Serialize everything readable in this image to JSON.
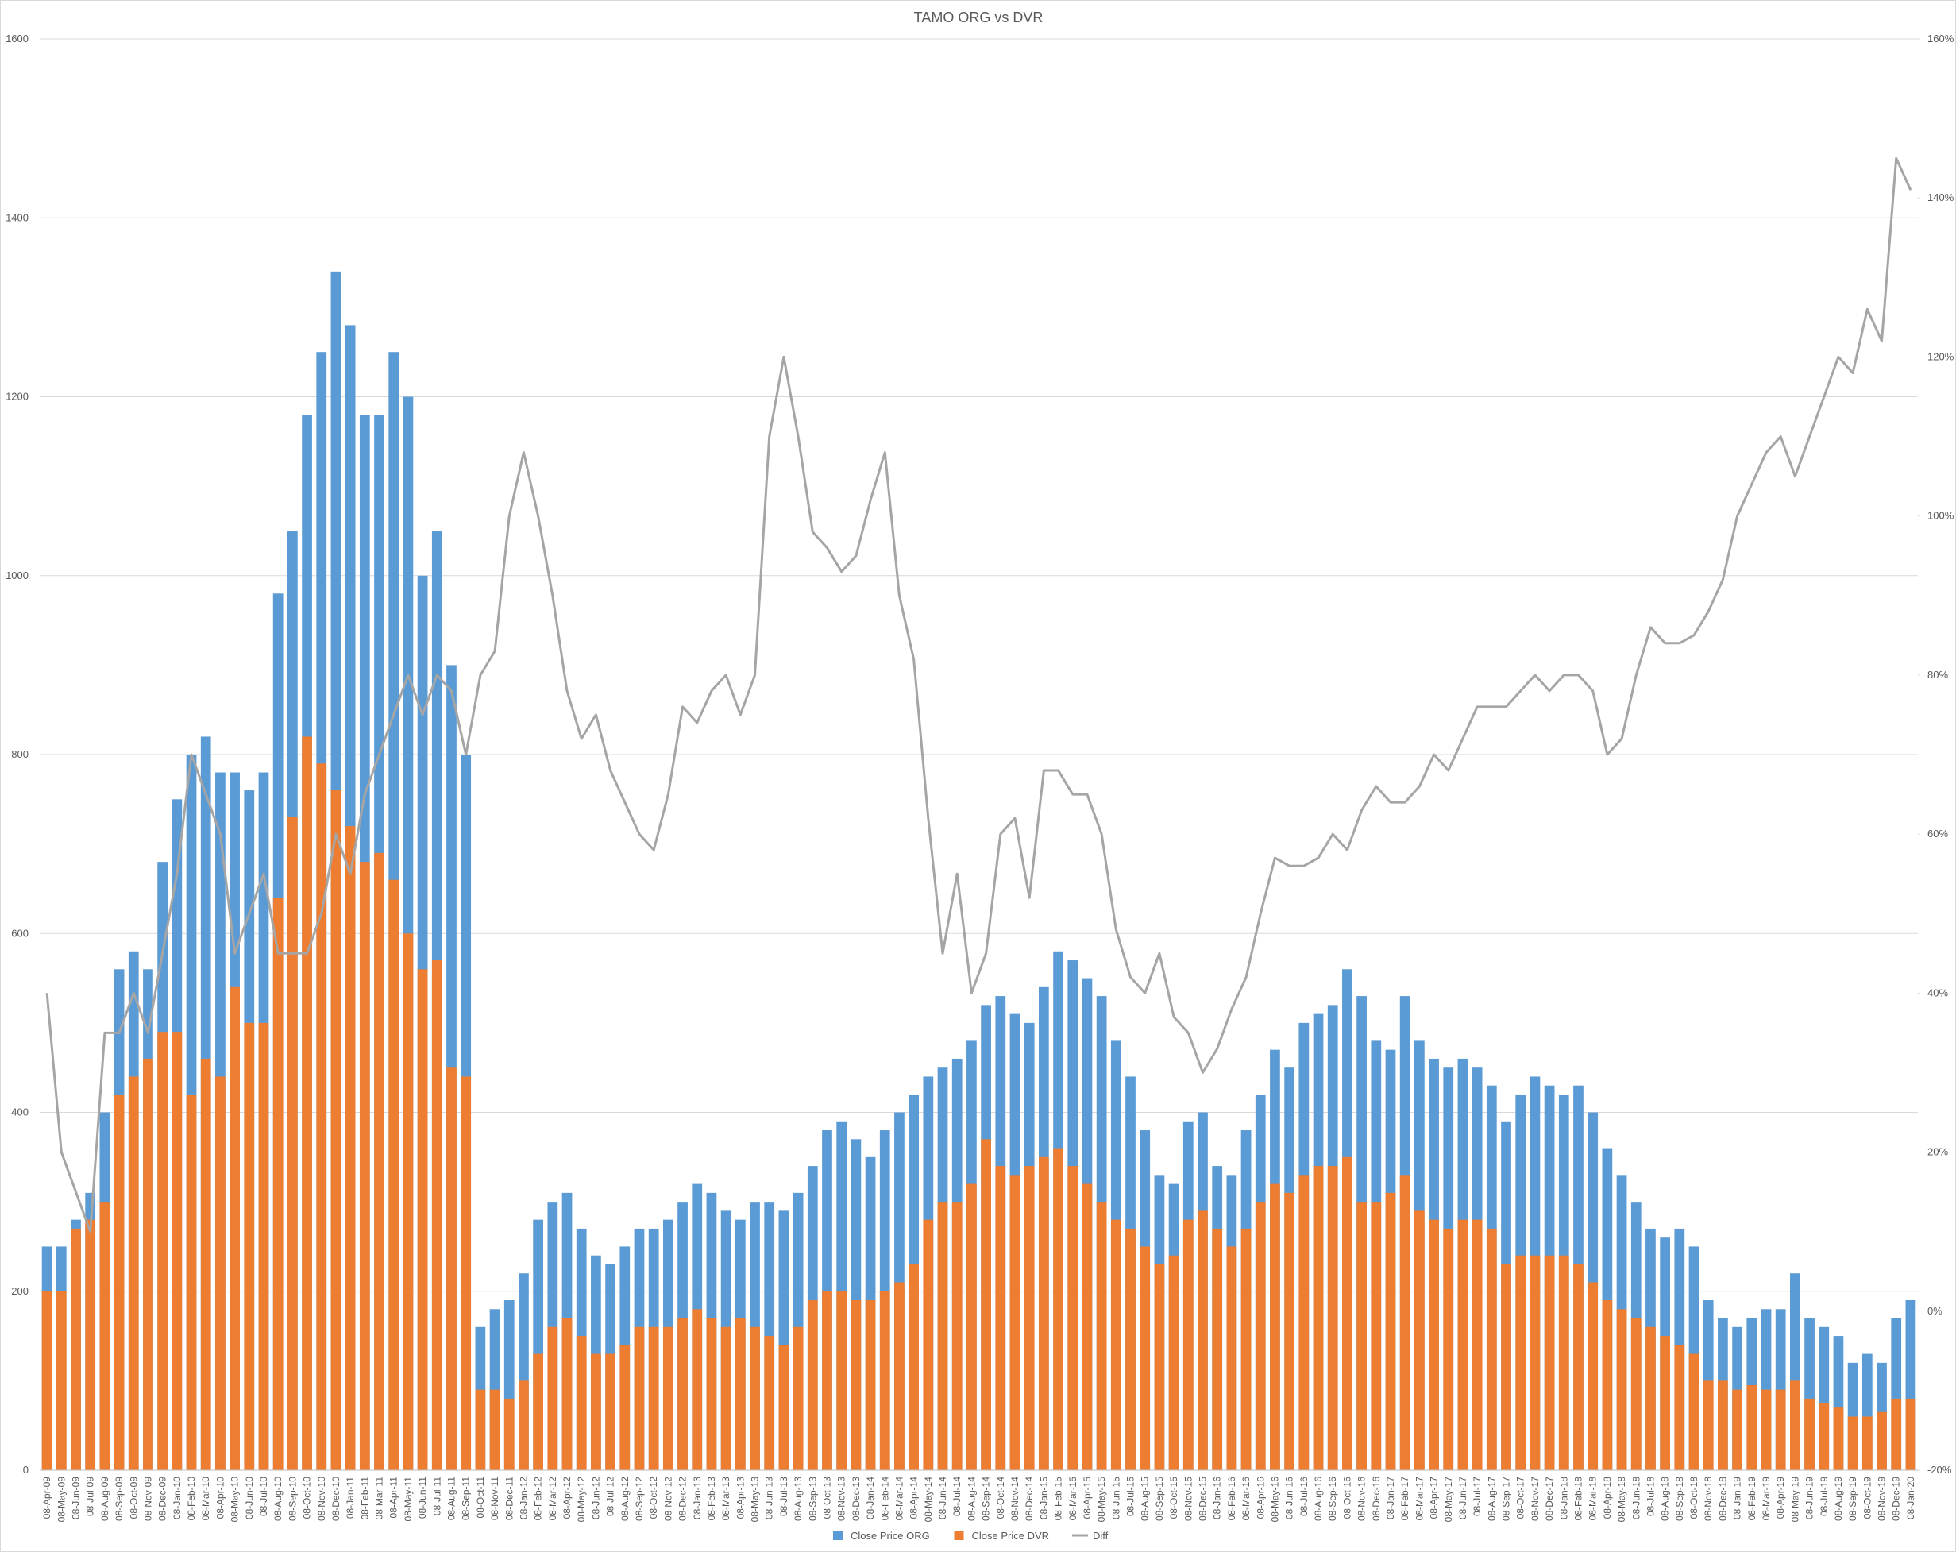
{
  "chart_data": {
    "type": "bar",
    "title": "TAMO ORG vs DVR",
    "categories": [
      "08-Apr-09",
      "08-May-09",
      "08-Jun-09",
      "08-Jul-09",
      "08-Aug-09",
      "08-Sep-09",
      "08-Oct-09",
      "08-Nov-09",
      "08-Dec-09",
      "08-Jan-10",
      "08-Feb-10",
      "08-Mar-10",
      "08-Apr-10",
      "08-May-10",
      "08-Jun-10",
      "08-Jul-10",
      "08-Aug-10",
      "08-Sep-10",
      "08-Oct-10",
      "08-Nov-10",
      "08-Dec-10",
      "08-Jan-11",
      "08-Feb-11",
      "08-Mar-11",
      "08-Apr-11",
      "08-May-11",
      "08-Jun-11",
      "08-Jul-11",
      "08-Aug-11",
      "08-Sep-11",
      "08-Oct-11",
      "08-Nov-11",
      "08-Dec-11",
      "08-Jan-12",
      "08-Feb-12",
      "08-Mar-12",
      "08-Apr-12",
      "08-May-12",
      "08-Jun-12",
      "08-Jul-12",
      "08-Aug-12",
      "08-Sep-12",
      "08-Oct-12",
      "08-Nov-12",
      "08-Dec-12",
      "08-Jan-13",
      "08-Feb-13",
      "08-Mar-13",
      "08-Apr-13",
      "08-May-13",
      "08-Jun-13",
      "08-Jul-13",
      "08-Aug-13",
      "08-Sep-13",
      "08-Oct-13",
      "08-Nov-13",
      "08-Dec-13",
      "08-Jan-14",
      "08-Feb-14",
      "08-Mar-14",
      "08-Apr-14",
      "08-May-14",
      "08-Jun-14",
      "08-Jul-14",
      "08-Aug-14",
      "08-Sep-14",
      "08-Oct-14",
      "08-Nov-14",
      "08-Dec-14",
      "08-Jan-15",
      "08-Feb-15",
      "08-Mar-15",
      "08-Apr-15",
      "08-May-15",
      "08-Jun-15",
      "08-Jul-15",
      "08-Aug-15",
      "08-Sep-15",
      "08-Oct-15",
      "08-Nov-15",
      "08-Dec-15",
      "08-Jan-16",
      "08-Feb-16",
      "08-Mar-16",
      "08-Apr-16",
      "08-May-16",
      "08-Jun-16",
      "08-Jul-16",
      "08-Aug-16",
      "08-Sep-16",
      "08-Oct-16",
      "08-Nov-16",
      "08-Dec-16",
      "08-Jan-17",
      "08-Feb-17",
      "08-Mar-17",
      "08-Apr-17",
      "08-May-17",
      "08-Jun-17",
      "08-Jul-17",
      "08-Aug-17",
      "08-Sep-17",
      "08-Oct-17",
      "08-Nov-17",
      "08-Dec-17",
      "08-Jan-18",
      "08-Feb-18",
      "08-Mar-18",
      "08-Apr-18",
      "08-May-18",
      "08-Jun-18",
      "08-Jul-18",
      "08-Aug-18",
      "08-Sep-18",
      "08-Oct-18",
      "08-Nov-18",
      "08-Dec-18",
      "08-Jan-19",
      "08-Feb-19",
      "08-Mar-19",
      "08-Apr-19",
      "08-May-19",
      "08-Jun-19",
      "08-Jul-19",
      "08-Aug-19",
      "08-Sep-19",
      "08-Oct-19",
      "08-Nov-19",
      "08-Dec-19",
      "08-Jan-20"
    ],
    "series": [
      {
        "name": "Close Price ORG",
        "color": "#5b9bd5",
        "values": [
          250,
          250,
          280,
          310,
          400,
          560,
          580,
          560,
          680,
          750,
          800,
          820,
          780,
          780,
          760,
          780,
          980,
          1050,
          1180,
          1250,
          1340,
          1280,
          1180,
          1180,
          1250,
          1200,
          1000,
          1050,
          900,
          800,
          160,
          180,
          190,
          220,
          280,
          300,
          310,
          270,
          240,
          230,
          250,
          270,
          270,
          280,
          300,
          320,
          310,
          290,
          280,
          300,
          300,
          290,
          310,
          340,
          380,
          390,
          370,
          350,
          380,
          400,
          420,
          440,
          450,
          460,
          480,
          520,
          530,
          510,
          500,
          540,
          580,
          570,
          550,
          530,
          480,
          440,
          380,
          330,
          320,
          390,
          400,
          340,
          330,
          380,
          420,
          470,
          450,
          500,
          510,
          520,
          560,
          530,
          480,
          470,
          530,
          480,
          460,
          450,
          460,
          450,
          430,
          390,
          420,
          440,
          430,
          420,
          430,
          400,
          360,
          330,
          300,
          270,
          260,
          270,
          250,
          190,
          170,
          160,
          170,
          180,
          180,
          220,
          170,
          160,
          150,
          120,
          130,
          120,
          170,
          190
        ]
      },
      {
        "name": "Close Price DVR",
        "color": "#ed7d31",
        "values": [
          200,
          200,
          270,
          280,
          300,
          420,
          440,
          460,
          490,
          490,
          420,
          460,
          440,
          540,
          500,
          500,
          640,
          730,
          820,
          790,
          760,
          720,
          680,
          690,
          660,
          600,
          560,
          570,
          450,
          440,
          90,
          90,
          80,
          100,
          130,
          160,
          170,
          150,
          130,
          130,
          140,
          160,
          160,
          160,
          170,
          180,
          170,
          160,
          170,
          160,
          150,
          140,
          160,
          190,
          200,
          200,
          190,
          190,
          200,
          210,
          230,
          280,
          300,
          300,
          320,
          370,
          340,
          330,
          340,
          350,
          360,
          340,
          320,
          300,
          280,
          270,
          250,
          230,
          240,
          280,
          290,
          270,
          250,
          270,
          300,
          320,
          310,
          330,
          340,
          340,
          350,
          300,
          300,
          310,
          330,
          290,
          280,
          270,
          280,
          280,
          270,
          230,
          240,
          240,
          240,
          240,
          230,
          210,
          190,
          180,
          170,
          160,
          150,
          140,
          130,
          100,
          100,
          90,
          95,
          90,
          90,
          100,
          80,
          75,
          70,
          60,
          60,
          65,
          80,
          80
        ]
      },
      {
        "name": "Diff",
        "color": "#a5a5a5",
        "type": "line",
        "axis": "y2",
        "values": [
          40,
          20,
          15,
          10,
          35,
          35,
          40,
          35,
          45,
          55,
          70,
          65,
          60,
          45,
          50,
          55,
          45,
          45,
          45,
          50,
          60,
          55,
          65,
          70,
          75,
          80,
          75,
          80,
          78,
          70,
          80,
          83,
          100,
          108,
          100,
          90,
          78,
          72,
          75,
          68,
          64,
          60,
          58,
          65,
          76,
          74,
          78,
          80,
          75,
          80,
          110,
          120,
          110,
          98,
          96,
          93,
          95,
          102,
          108,
          90,
          82,
          62,
          45,
          55,
          40,
          45,
          60,
          62,
          52,
          68,
          68,
          65,
          65,
          60,
          48,
          42,
          40,
          45,
          37,
          35,
          30,
          33,
          38,
          42,
          50,
          57,
          56,
          56,
          57,
          60,
          58,
          63,
          66,
          64,
          64,
          66,
          70,
          68,
          72,
          76,
          76,
          76,
          78,
          80,
          78,
          80,
          80,
          78,
          70,
          72,
          80,
          86,
          84,
          84,
          85,
          88,
          92,
          100,
          104,
          108,
          110,
          105,
          110,
          115,
          120,
          118,
          126,
          122,
          145,
          141
        ]
      }
    ],
    "ylim": [
      0,
      1600
    ],
    "yticks": [
      0,
      200,
      400,
      600,
      800,
      1000,
      1200,
      1400,
      1600
    ],
    "y2lim": [
      -20,
      160
    ],
    "y2ticks": [
      {
        "value": -20,
        "label": "-20%"
      },
      {
        "value": 0,
        "label": "0%"
      },
      {
        "value": 20,
        "label": "20%"
      },
      {
        "value": 40,
        "label": "40%"
      },
      {
        "value": 60,
        "label": "60%"
      },
      {
        "value": 80,
        "label": "80%"
      },
      {
        "value": 100,
        "label": "100%"
      },
      {
        "value": 120,
        "label": "120%"
      },
      {
        "value": 140,
        "label": "140%"
      },
      {
        "value": 160,
        "label": "160%"
      }
    ],
    "grid": true,
    "legend": "bottom"
  }
}
